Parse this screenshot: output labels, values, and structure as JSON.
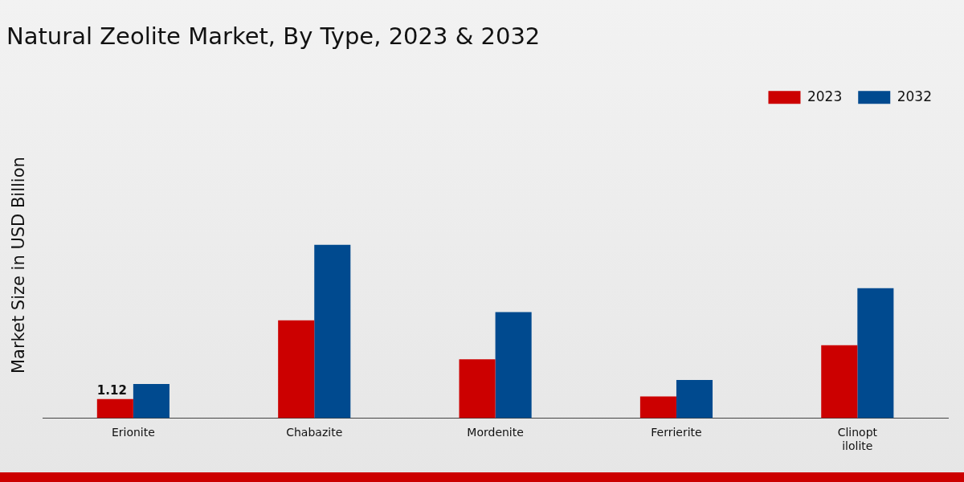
{
  "chart_data": {
    "type": "bar",
    "title": "Natural Zeolite Market, By Type, 2023 & 2032",
    "y_label": "Market Size in USD Billion",
    "categories": [
      "Erionite",
      "Chabazite",
      "Mordenite",
      "Ferrierite",
      "Clinopt\nilolite"
    ],
    "series": [
      {
        "name": "2023",
        "color": "#cc0000",
        "values": [
          1.12,
          5.75,
          3.46,
          1.27,
          4.29
        ],
        "value_labels": [
          "1.12",
          null,
          null,
          null,
          null
        ]
      },
      {
        "name": "2032",
        "color": "#004a8f",
        "values": [
          2.0,
          10.2,
          6.24,
          2.24,
          7.65
        ]
      }
    ],
    "ylim": [
      0,
      18
    ],
    "yticks": [],
    "grid": false,
    "legend": "top-right",
    "data_labels": true,
    "tick_labels": "x"
  }
}
